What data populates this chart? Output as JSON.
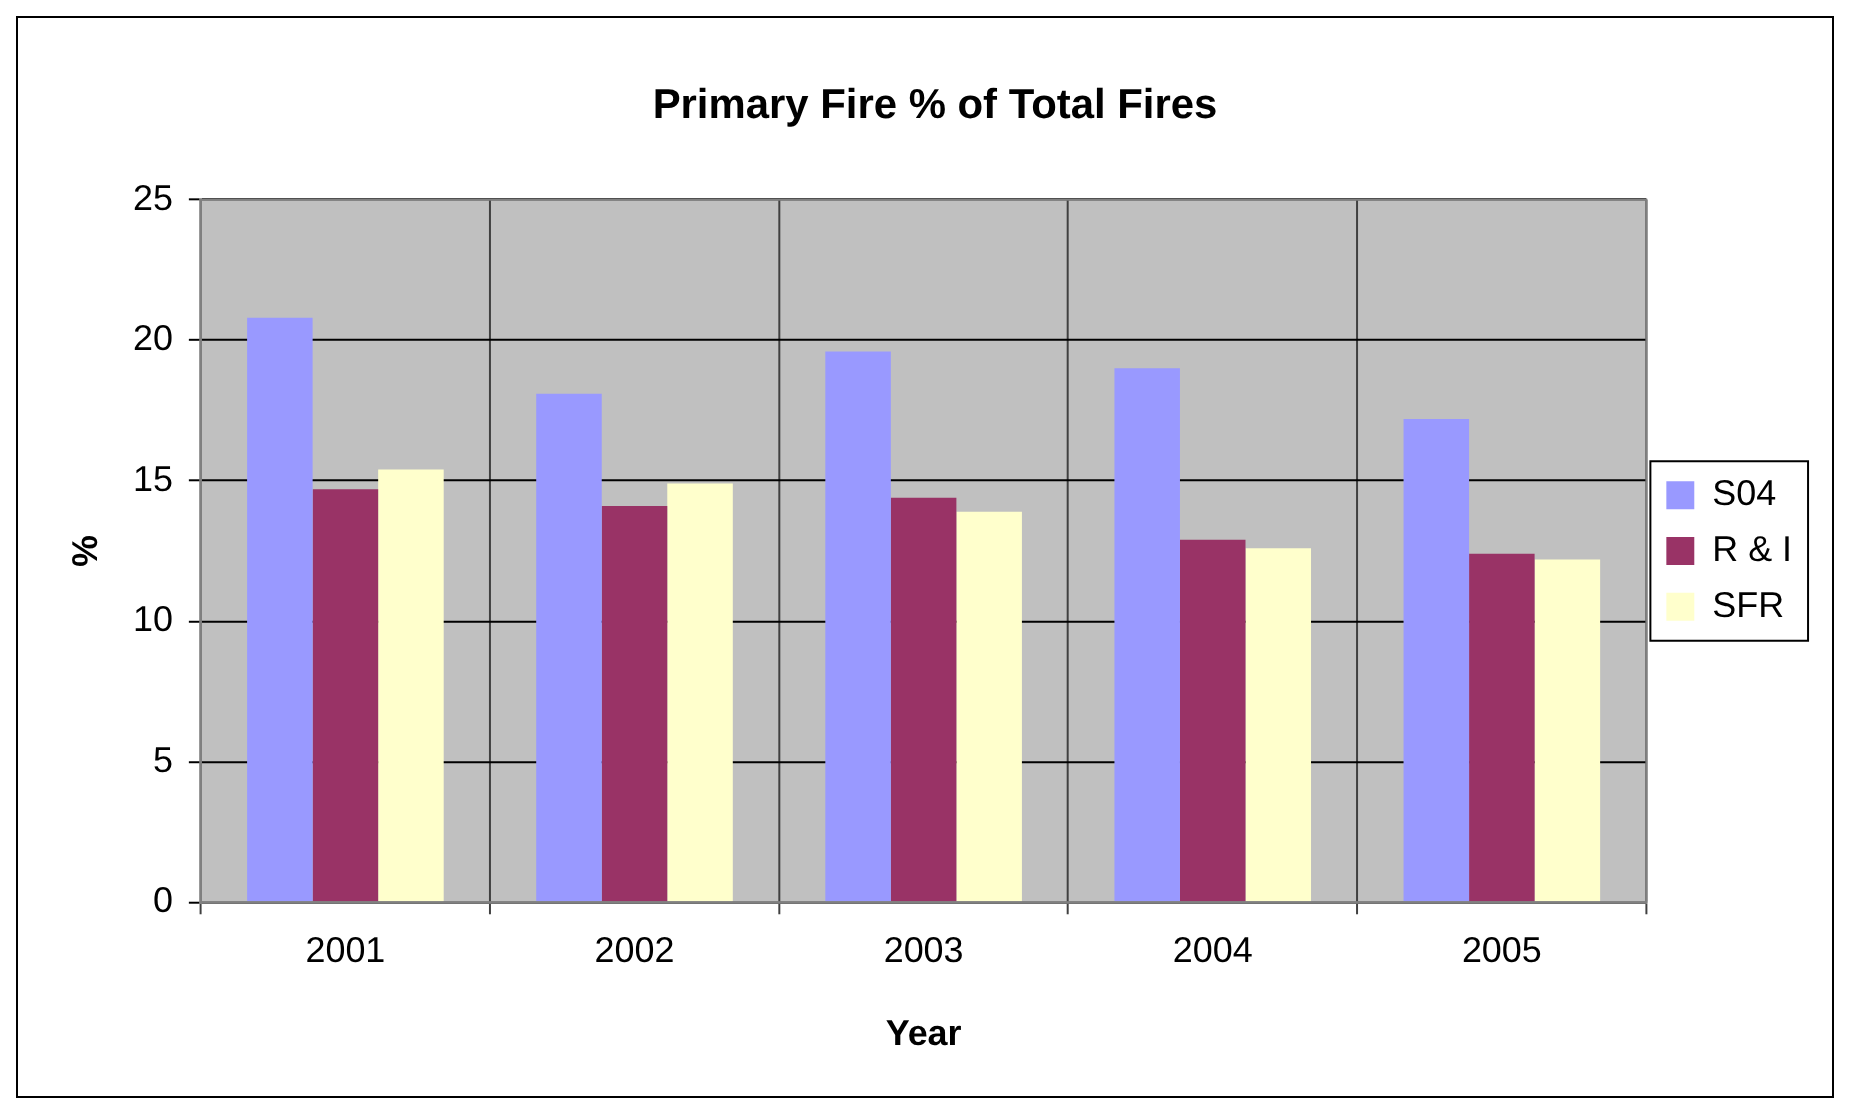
{
  "chart_data": {
    "type": "bar",
    "title": "Primary Fire % of Total Fires",
    "xlabel": "Year",
    "ylabel": "%",
    "categories": [
      "2001",
      "2002",
      "2003",
      "2004",
      "2005"
    ],
    "series": [
      {
        "name": "S04",
        "color": "#9999ff",
        "values": [
          20.8,
          18.1,
          19.6,
          19.0,
          17.2
        ]
      },
      {
        "name": "R & I",
        "color": "#993366",
        "values": [
          14.7,
          14.1,
          14.4,
          12.9,
          12.4
        ]
      },
      {
        "name": "SFR",
        "color": "#ffffcc",
        "values": [
          15.4,
          14.9,
          13.9,
          12.6,
          12.2
        ]
      }
    ],
    "ylim": [
      0,
      25
    ],
    "yticks": [
      0,
      5,
      10,
      15,
      20,
      25
    ],
    "grid": true,
    "legend": "right"
  }
}
